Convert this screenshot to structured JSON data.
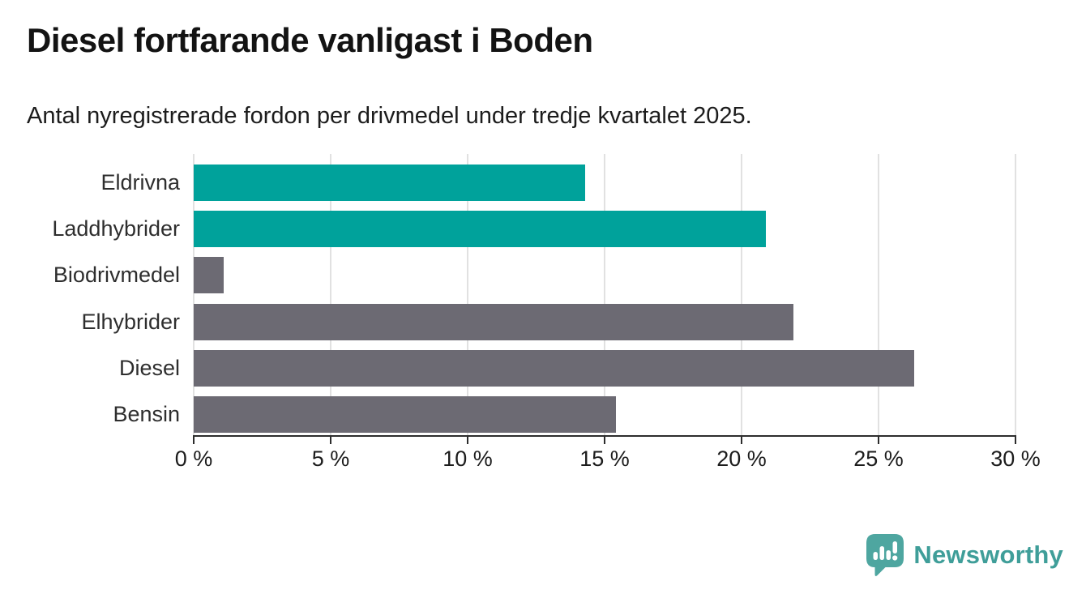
{
  "header": {
    "title": "Diesel fortfarande vanligast i Boden",
    "subtitle": "Antal nyregistrerade fordon per drivmedel under tredje kvartalet 2025."
  },
  "chart_data": {
    "type": "bar",
    "orientation": "horizontal",
    "title": "Diesel fortfarande vanligast i Boden",
    "subtitle": "Antal nyregistrerade fordon per drivmedel under tredje kvartalet 2025.",
    "categories": [
      "Eldrivna",
      "Laddhybrider",
      "Biodrivmedel",
      "Elhybrider",
      "Diesel",
      "Bensin"
    ],
    "values": [
      14.3,
      20.9,
      1.1,
      21.9,
      26.3,
      15.4
    ],
    "unit": "%",
    "xlim": [
      0,
      30
    ],
    "x_ticks": [
      0,
      5,
      10,
      15,
      20,
      25,
      30
    ],
    "x_tick_labels": [
      "0 %",
      "5 %",
      "10 %",
      "15 %",
      "20 %",
      "25 %",
      "30 %"
    ],
    "grid": true,
    "legend": "none",
    "bar_colors": [
      "#00a29b",
      "#00a29b",
      "#6c6a73",
      "#6c6a73",
      "#6c6a73",
      "#6c6a73"
    ],
    "highlight_color": "#00a29b",
    "default_color": "#6c6a73"
  },
  "footer": {
    "brand": "Newsworthy",
    "brand_text_color": "#3f9e99",
    "logo_icon": "bar-chart-speech-bubble-icon",
    "logo_icon_color": "#4ea6a0"
  }
}
